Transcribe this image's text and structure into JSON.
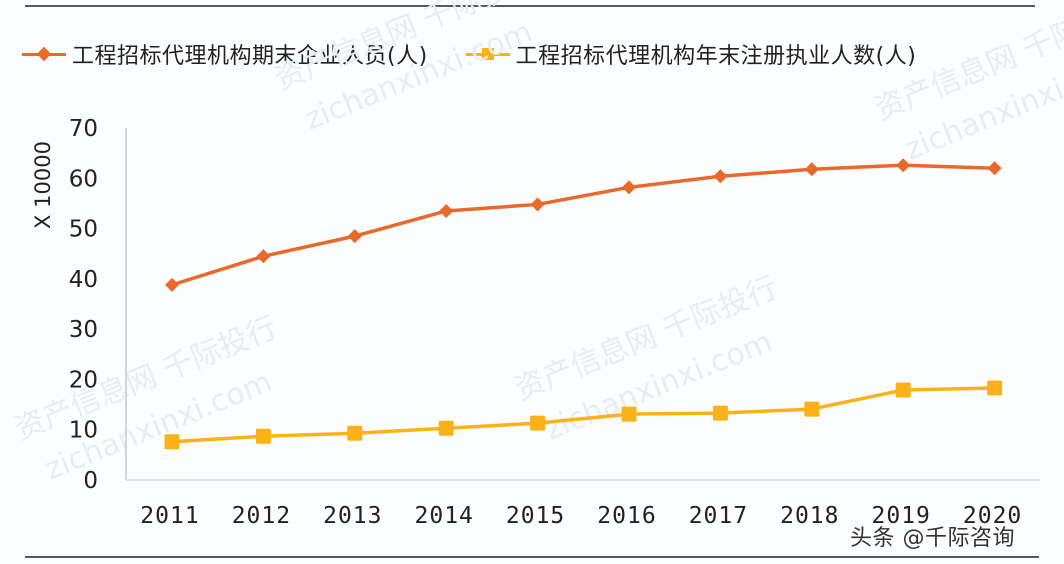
{
  "chart_data": {
    "type": "line",
    "title": "",
    "xlabel": "",
    "ylabel": "X 10000",
    "ylim": [
      0,
      70
    ],
    "yticks": [
      0,
      10,
      20,
      30,
      40,
      50,
      60,
      70
    ],
    "grid": false,
    "legend_position": "top",
    "categories": [
      "2011",
      "2012",
      "2013",
      "2014",
      "2015",
      "2016",
      "2017",
      "2018",
      "2019",
      "2020"
    ],
    "series": [
      {
        "name": "工程招标代理机构期末企业人员(人)",
        "color": "#e8692a",
        "marker": "diamond",
        "values": [
          38.8,
          44.5,
          48.5,
          53.5,
          54.8,
          58.2,
          60.4,
          61.8,
          62.6,
          62.0
        ]
      },
      {
        "name": "工程招标代理机构年末注册执业人数(人)",
        "color": "#fbb217",
        "marker": "square",
        "values": [
          7.6,
          8.7,
          9.3,
          10.3,
          11.3,
          13.1,
          13.3,
          14.1,
          17.9,
          18.3
        ]
      }
    ]
  },
  "legend": {
    "items": [
      {
        "label": "工程招标代理机构期末企业人员(人)",
        "color": "#e8692a",
        "marker": "diamond"
      },
      {
        "label": "工程招标代理机构年末注册执业人数(人)",
        "color": "#fbb217",
        "marker": "square"
      }
    ]
  },
  "axis": {
    "y_unit_label": "X 10000"
  },
  "watermarks": [
    "资产信息网 千际投行",
    "zichanxinxi.com"
  ],
  "caption": "头条 @千际咨询"
}
